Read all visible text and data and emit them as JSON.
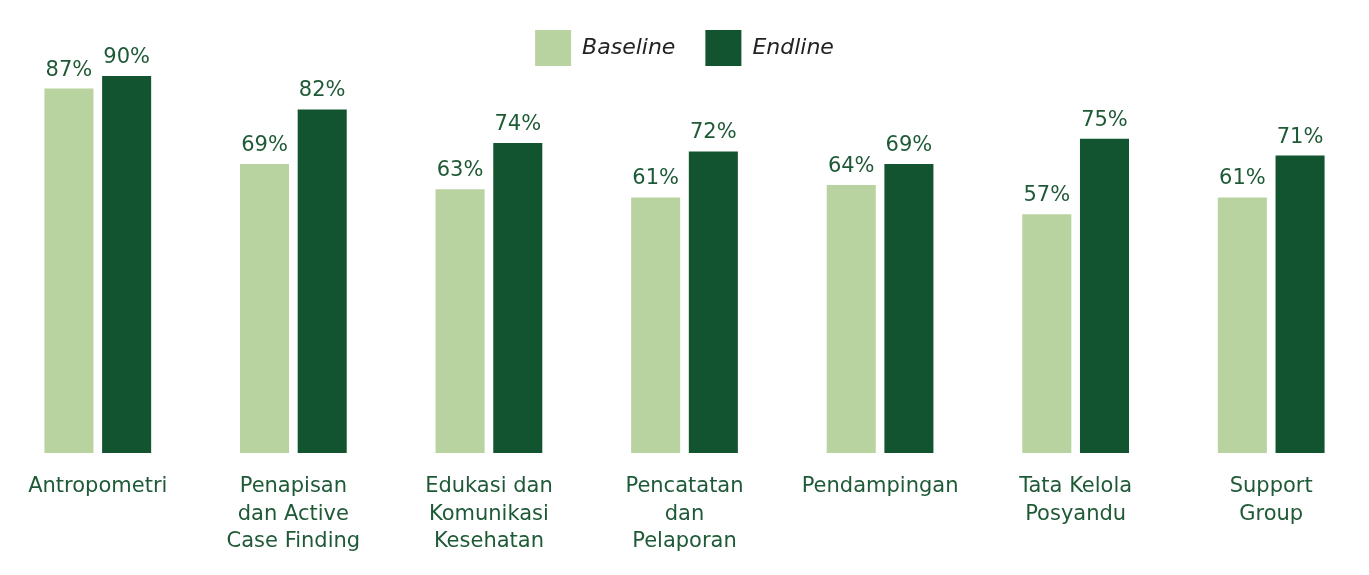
{
  "chart_data": {
    "type": "bar",
    "categories": [
      "Antropometri",
      "Penapisan dan Active Case Finding",
      "Edukasi dan Komunikasi Kesehatan",
      "Pencatatan dan Pelaporan",
      "Pendampingan",
      "Tata Kelola Posyandu",
      "Support Group"
    ],
    "series": [
      {
        "name": "Baseline",
        "color": "#b8d3a0",
        "values": [
          87,
          69,
          63,
          61,
          64,
          57,
          61
        ],
        "value_labels": [
          "87%",
          "69%",
          "63%",
          "61%",
          "64%",
          "57%",
          "61%"
        ]
      },
      {
        "name": "Endline",
        "color": "#12542f",
        "values": [
          90,
          82,
          74,
          72,
          69,
          75,
          71
        ],
        "value_labels": [
          "90%",
          "82%",
          "74%",
          "72%",
          "69%",
          "75%",
          "71%"
        ]
      }
    ],
    "legend": "top",
    "grid": false
  }
}
